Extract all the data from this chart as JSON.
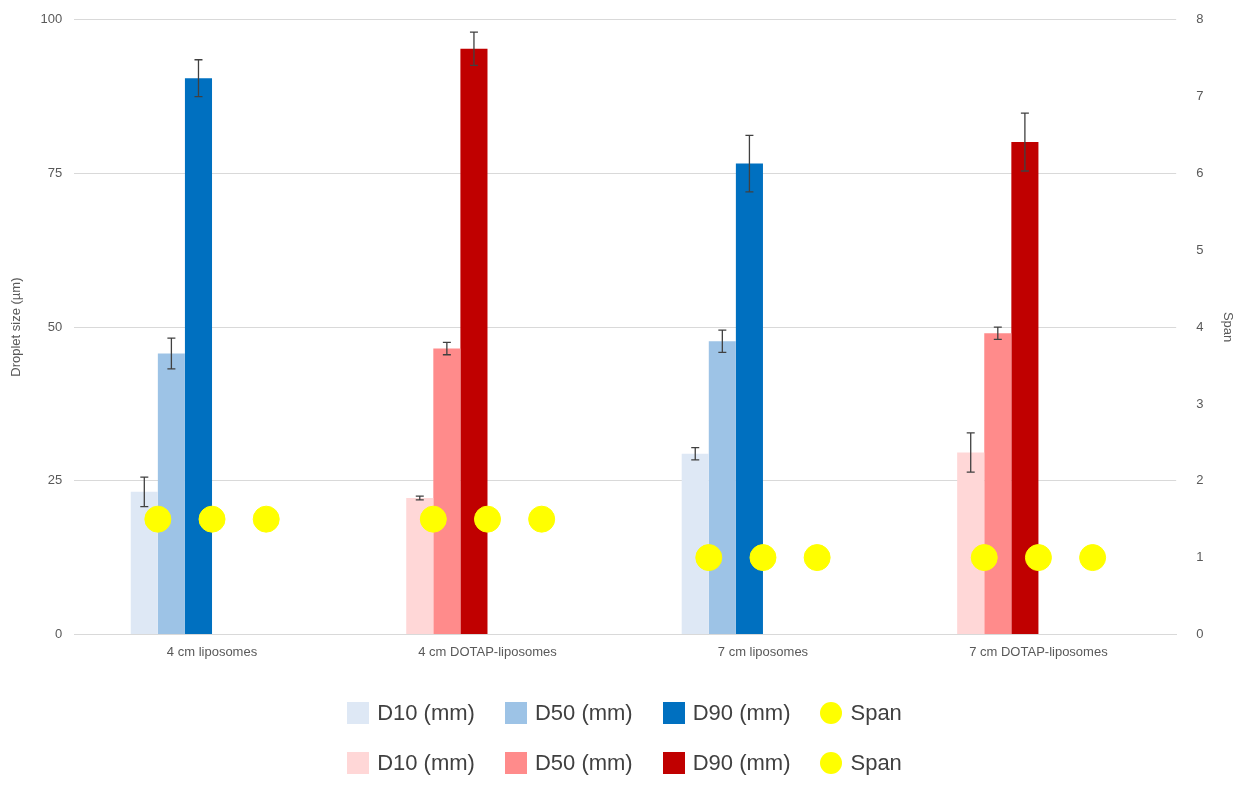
{
  "chart_data": {
    "type": "bar",
    "ylabel": "Droplet size (µm)",
    "y2label": "Span",
    "categories": [
      "4 cm liposomes",
      "4 cm DOTAP-liposomes",
      "7 cm liposomes",
      "7 cm DOTAP-liposomes"
    ],
    "ylim": [
      0,
      100
    ],
    "yticks": [
      0,
      25,
      50,
      75,
      100
    ],
    "y2lim": [
      0,
      8
    ],
    "y2ticks": [
      0,
      1,
      2,
      3,
      4,
      5,
      6,
      7,
      8
    ],
    "grid": "y",
    "legend": "bottom",
    "series": [
      {
        "name": "D10 (mm)",
        "color": "#dee8f5",
        "values": [
          23.2,
          null,
          29.4,
          null
        ],
        "errors": [
          2.4,
          null,
          1.0,
          null
        ]
      },
      {
        "name": "D50 (mm)",
        "color": "#9dc3e6",
        "values": [
          45.7,
          null,
          47.7,
          null
        ],
        "errors": [
          2.5,
          null,
          1.8,
          null
        ]
      },
      {
        "name": "D90 (mm)",
        "color": "#0070c0",
        "values": [
          90.5,
          null,
          76.6,
          null
        ],
        "errors": [
          3.0,
          null,
          4.6,
          null
        ]
      },
      {
        "name": "Span",
        "type": "scatter",
        "axis": "y2",
        "marker": "circle",
        "color": "#ffff00",
        "x": [
          "4 cm liposomes",
          "4 cm liposomes",
          "4 cm liposomes",
          "7 cm liposomes",
          "7 cm liposomes",
          "7 cm liposomes"
        ],
        "values": [
          1.5,
          1.5,
          1.5,
          1.0,
          1.0,
          1.0
        ]
      },
      {
        "name": "D10 (mm)",
        "color": "#ffd7d7",
        "values": [
          null,
          22.2,
          null,
          29.6
        ],
        "errors": [
          null,
          0.3,
          null,
          3.2
        ]
      },
      {
        "name": "D50 (mm)",
        "color": "#ff8b8b",
        "values": [
          null,
          46.5,
          null,
          49.0
        ],
        "errors": [
          null,
          1.0,
          null,
          1.0
        ]
      },
      {
        "name": "D90 (mm)",
        "color": "#c00000",
        "values": [
          null,
          95.3,
          null,
          80.1
        ],
        "errors": [
          null,
          2.7,
          null,
          4.7
        ]
      },
      {
        "name": "Span",
        "type": "scatter",
        "axis": "y2",
        "marker": "circle",
        "color": "#ffff00",
        "x": [
          "4 cm DOTAP-liposomes",
          "4 cm DOTAP-liposomes",
          "4 cm DOTAP-liposomes",
          "7 cm DOTAP-liposomes",
          "7 cm DOTAP-liposomes",
          "7 cm DOTAP-liposomes"
        ],
        "values": [
          1.5,
          1.5,
          1.5,
          1.0,
          1.0,
          1.0
        ]
      }
    ]
  }
}
